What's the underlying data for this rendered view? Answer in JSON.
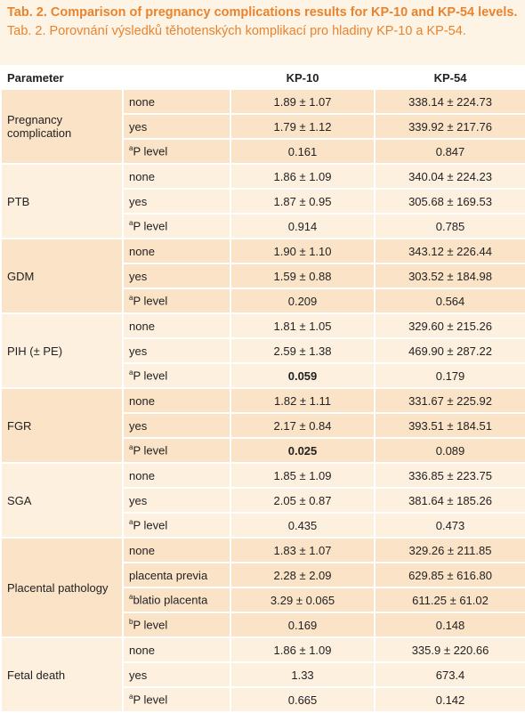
{
  "header": {
    "title": "Tab. 2. Comparison of pregnancy complications results for KP-10 and KP-54 levels.",
    "subtitle": "Tab. 2. Porovnání výsledků těhotenských komplikací pro hladiny KP-10 a KP-54."
  },
  "table": {
    "columns": [
      "Parameter",
      "KP-10",
      "KP-54"
    ],
    "groups": [
      {
        "name": "Pregnancy complication",
        "rows": [
          {
            "label": "none",
            "kp10": "1.89 ± 1.07",
            "kp54": "338.14 ± 224.73"
          },
          {
            "label": "yes",
            "kp10": "1.79 ± 1.12",
            "kp54": "339.92 ± 217.76"
          },
          {
            "sup": "a",
            "label": "P level",
            "kp10": "0.161",
            "kp54": "0.847"
          }
        ]
      },
      {
        "name": "PTB",
        "rows": [
          {
            "label": "none",
            "kp10": "1.86 ± 1.09",
            "kp54": "340.04 ± 224.23"
          },
          {
            "label": "yes",
            "kp10": "1.87 ± 0.95",
            "kp54": "305.68 ± 169.53"
          },
          {
            "sup": "a",
            "label": "P level",
            "kp10": "0.914",
            "kp54": "0.785"
          }
        ]
      },
      {
        "name": "GDM",
        "rows": [
          {
            "label": "none",
            "kp10": "1.90 ± 1.10",
            "kp54": "343.12 ± 226.44"
          },
          {
            "label": "yes",
            "kp10": "1.59 ± 0.88",
            "kp54": "303.52 ± 184.98"
          },
          {
            "sup": "a",
            "label": "P level",
            "kp10": "0.209",
            "kp54": "0.564"
          }
        ]
      },
      {
        "name": "PIH (± PE)",
        "rows": [
          {
            "label": "none",
            "kp10": "1.81 ± 1.05",
            "kp54": "329.60 ± 215.26"
          },
          {
            "label": "yes",
            "kp10": "2.59 ± 1.38",
            "kp54": "469.90 ± 287.22"
          },
          {
            "sup": "a",
            "label": "P level",
            "kp10": "0.059",
            "kp10_bold": true,
            "kp54": "0.179"
          }
        ]
      },
      {
        "name": "FGR",
        "rows": [
          {
            "label": "none",
            "kp10": "1.82 ± 1.11",
            "kp54": "331.67 ± 225.92"
          },
          {
            "label": "yes",
            "kp10": "2.17 ± 0.84",
            "kp54": "393.51 ± 184.51"
          },
          {
            "sup": "a",
            "label": "P level",
            "kp10": "0.025",
            "kp10_bold": true,
            "kp54": "0.089"
          }
        ]
      },
      {
        "name": "SGA",
        "rows": [
          {
            "label": "none",
            "kp10": "1.85 ± 1.09",
            "kp54": "336.85 ± 223.75"
          },
          {
            "label": "yes",
            "kp10": "2.05 ± 0.87",
            "kp54": "381.64 ± 185.26"
          },
          {
            "sup": "a",
            "label": "P level",
            "kp10": "0.435",
            "kp54": "0.473"
          }
        ]
      },
      {
        "name": "Placental pathology",
        "rows": [
          {
            "label": "none",
            "kp10": "1.83 ± 1.07",
            "kp54": "329.26 ± 211.85"
          },
          {
            "label": "placenta previa",
            "kp10": "2.28 ± 2.09",
            "kp54": "629.85 ± 616.80"
          },
          {
            "sup": "a",
            "label": "blatio placenta",
            "kp10": "3.29 ± 0.065",
            "kp54": "611.25 ± 61.02"
          },
          {
            "sup": "b",
            "label": "P level",
            "kp10": "0.169",
            "kp54": "0.148"
          }
        ]
      },
      {
        "name": "Fetal death",
        "rows": [
          {
            "label": "none",
            "kp10": "1.86 ± 1.09",
            "kp54": "335.9 ± 220.66"
          },
          {
            "label": "yes",
            "kp10": "1.33",
            "kp54": "673.4"
          },
          {
            "sup": "a",
            "label": "P level",
            "kp10": "0.665",
            "kp54": "0.142"
          }
        ]
      }
    ]
  }
}
